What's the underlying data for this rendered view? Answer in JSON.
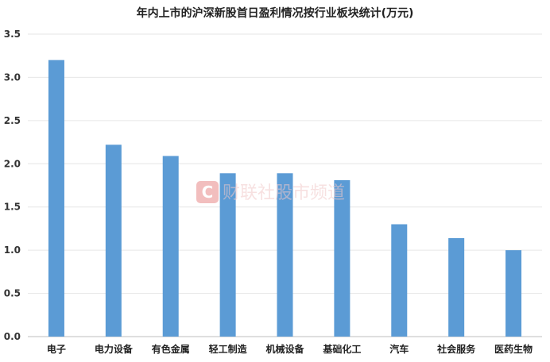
{
  "chart_data": {
    "type": "bar",
    "title": "年内上市的沪深新股首日盈利情况按行业板块统计(万元)",
    "categories": [
      "电子",
      "电力设备",
      "有色金属",
      "轻工制造",
      "机械设备",
      "基础化工",
      "汽车",
      "社会服务",
      "医药生物"
    ],
    "values": [
      3.2,
      2.22,
      2.09,
      1.89,
      1.89,
      1.81,
      1.3,
      1.14,
      1.0
    ],
    "ylim": [
      0,
      3.5
    ],
    "yticks": [
      "0.0",
      "0.5",
      "1.0",
      "1.5",
      "2.0",
      "2.5",
      "3.0",
      "3.5"
    ],
    "grid": true,
    "bar_color": "#5B9BD5"
  },
  "watermark": {
    "logo_letter": "C",
    "text": "财联社股市频道",
    "color": "#e06060"
  }
}
